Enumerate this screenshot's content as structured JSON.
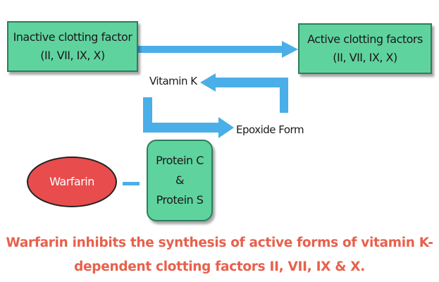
{
  "nodes": {
    "inactive": {
      "line1": "Inactive clotting factor",
      "line2": "(II, VII, IX, X)"
    },
    "active": {
      "line1": "Active clotting factors",
      "line2": "(II, VII, IX, X)"
    },
    "vitamin_k": "Vitamin K",
    "epoxide": "Epoxide Form",
    "protein": {
      "line1": "Protein C",
      "line2": "&",
      "line3": "Protein S"
    },
    "warfarin": "Warfarin"
  },
  "caption": {
    "line1": "Warfarin inhibits the synthesis of active forms of vitamin K-",
    "line2": "dependent clotting factors II, VII, IX & X."
  },
  "colors": {
    "box_fill": "#5fd39e",
    "arrow": "#4aaee8",
    "warfarin_fill": "#e84c4c",
    "caption_text": "#e8604c"
  }
}
